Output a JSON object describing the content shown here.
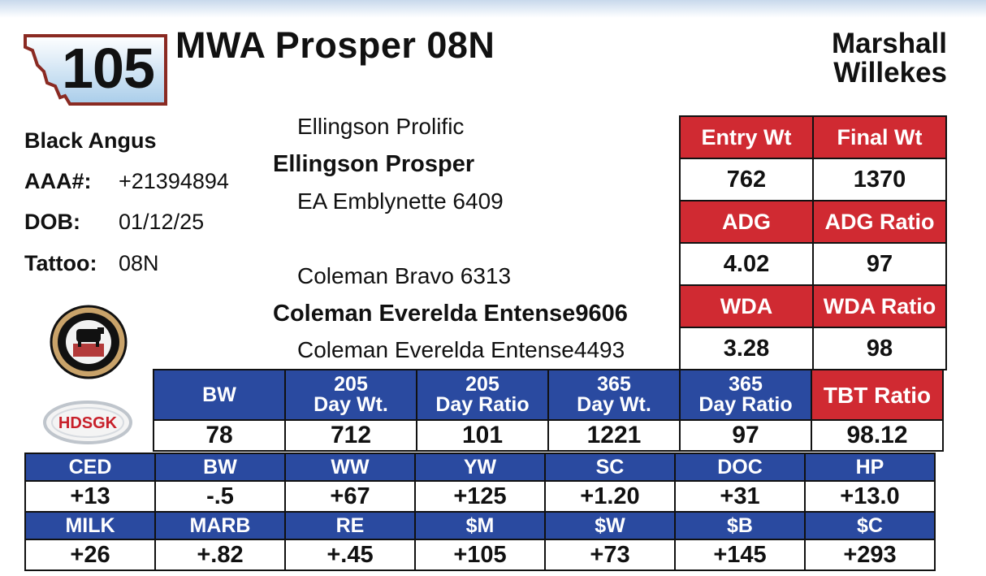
{
  "lot": {
    "number": "105"
  },
  "animal": {
    "name": "MWA Prosper 08N"
  },
  "consignor": {
    "line1": "Marshall",
    "line2": "Willekes"
  },
  "info": {
    "breed": "Black Angus",
    "aaa_label": "AAA#:",
    "aaa_value": "+21394894",
    "dob_label": "DOB:",
    "dob_value": "01/12/25",
    "tattoo_label": "Tattoo:",
    "tattoo_value": "08N"
  },
  "pedigree": {
    "sire_sire": "Ellingson Prolific",
    "sire": "Ellingson Prosper",
    "sire_dam": "EA Emblynette 6409",
    "dam_sire": "Coleman Bravo 6313",
    "dam": "Coleman Everelda Entense9606",
    "dam_dam": "Coleman Everelda Entense4493"
  },
  "logos": {
    "seal_icon": "cattle-seal-icon",
    "hdsgk_text": "HDSGK"
  },
  "performance": {
    "rows": [
      {
        "h1": "Entry Wt",
        "h2": "Final Wt",
        "v1": "762",
        "v2": "1370"
      },
      {
        "h1": "ADG",
        "h2": "ADG Ratio",
        "v1": "4.02",
        "v2": "97"
      },
      {
        "h1": "WDA",
        "h2": "WDA Ratio",
        "v1": "3.28",
        "v2": "98"
      }
    ]
  },
  "weights": {
    "headers": [
      {
        "l1": "BW",
        "l2": ""
      },
      {
        "l1": "205",
        "l2": "Day Wt."
      },
      {
        "l1": "205",
        "l2": "Day Ratio"
      },
      {
        "l1": "365",
        "l2": "Day Wt."
      },
      {
        "l1": "365",
        "l2": "Day Ratio"
      },
      {
        "l1": "TBT Ratio",
        "l2": ""
      }
    ],
    "values": [
      "78",
      "712",
      "101",
      "1221",
      "97",
      "98.12"
    ]
  },
  "epds": {
    "row1": {
      "headers": [
        "CED",
        "BW",
        "WW",
        "YW",
        "SC",
        "DOC",
        "HP"
      ],
      "values": [
        "+13",
        "-.5",
        "+67",
        "+125",
        "+1.20",
        "+31",
        "+13.0"
      ]
    },
    "row2": {
      "headers": [
        "MILK",
        "MARB",
        "RE",
        "$M",
        "$W",
        "$B",
        "$C"
      ],
      "values": [
        "+26",
        "+.82",
        "+.45",
        "+105",
        "+73",
        "+145",
        "+293"
      ]
    }
  },
  "colors": {
    "red": "#d02a32",
    "blue": "#2a4aa0",
    "badge_border": "#8a2a22"
  }
}
